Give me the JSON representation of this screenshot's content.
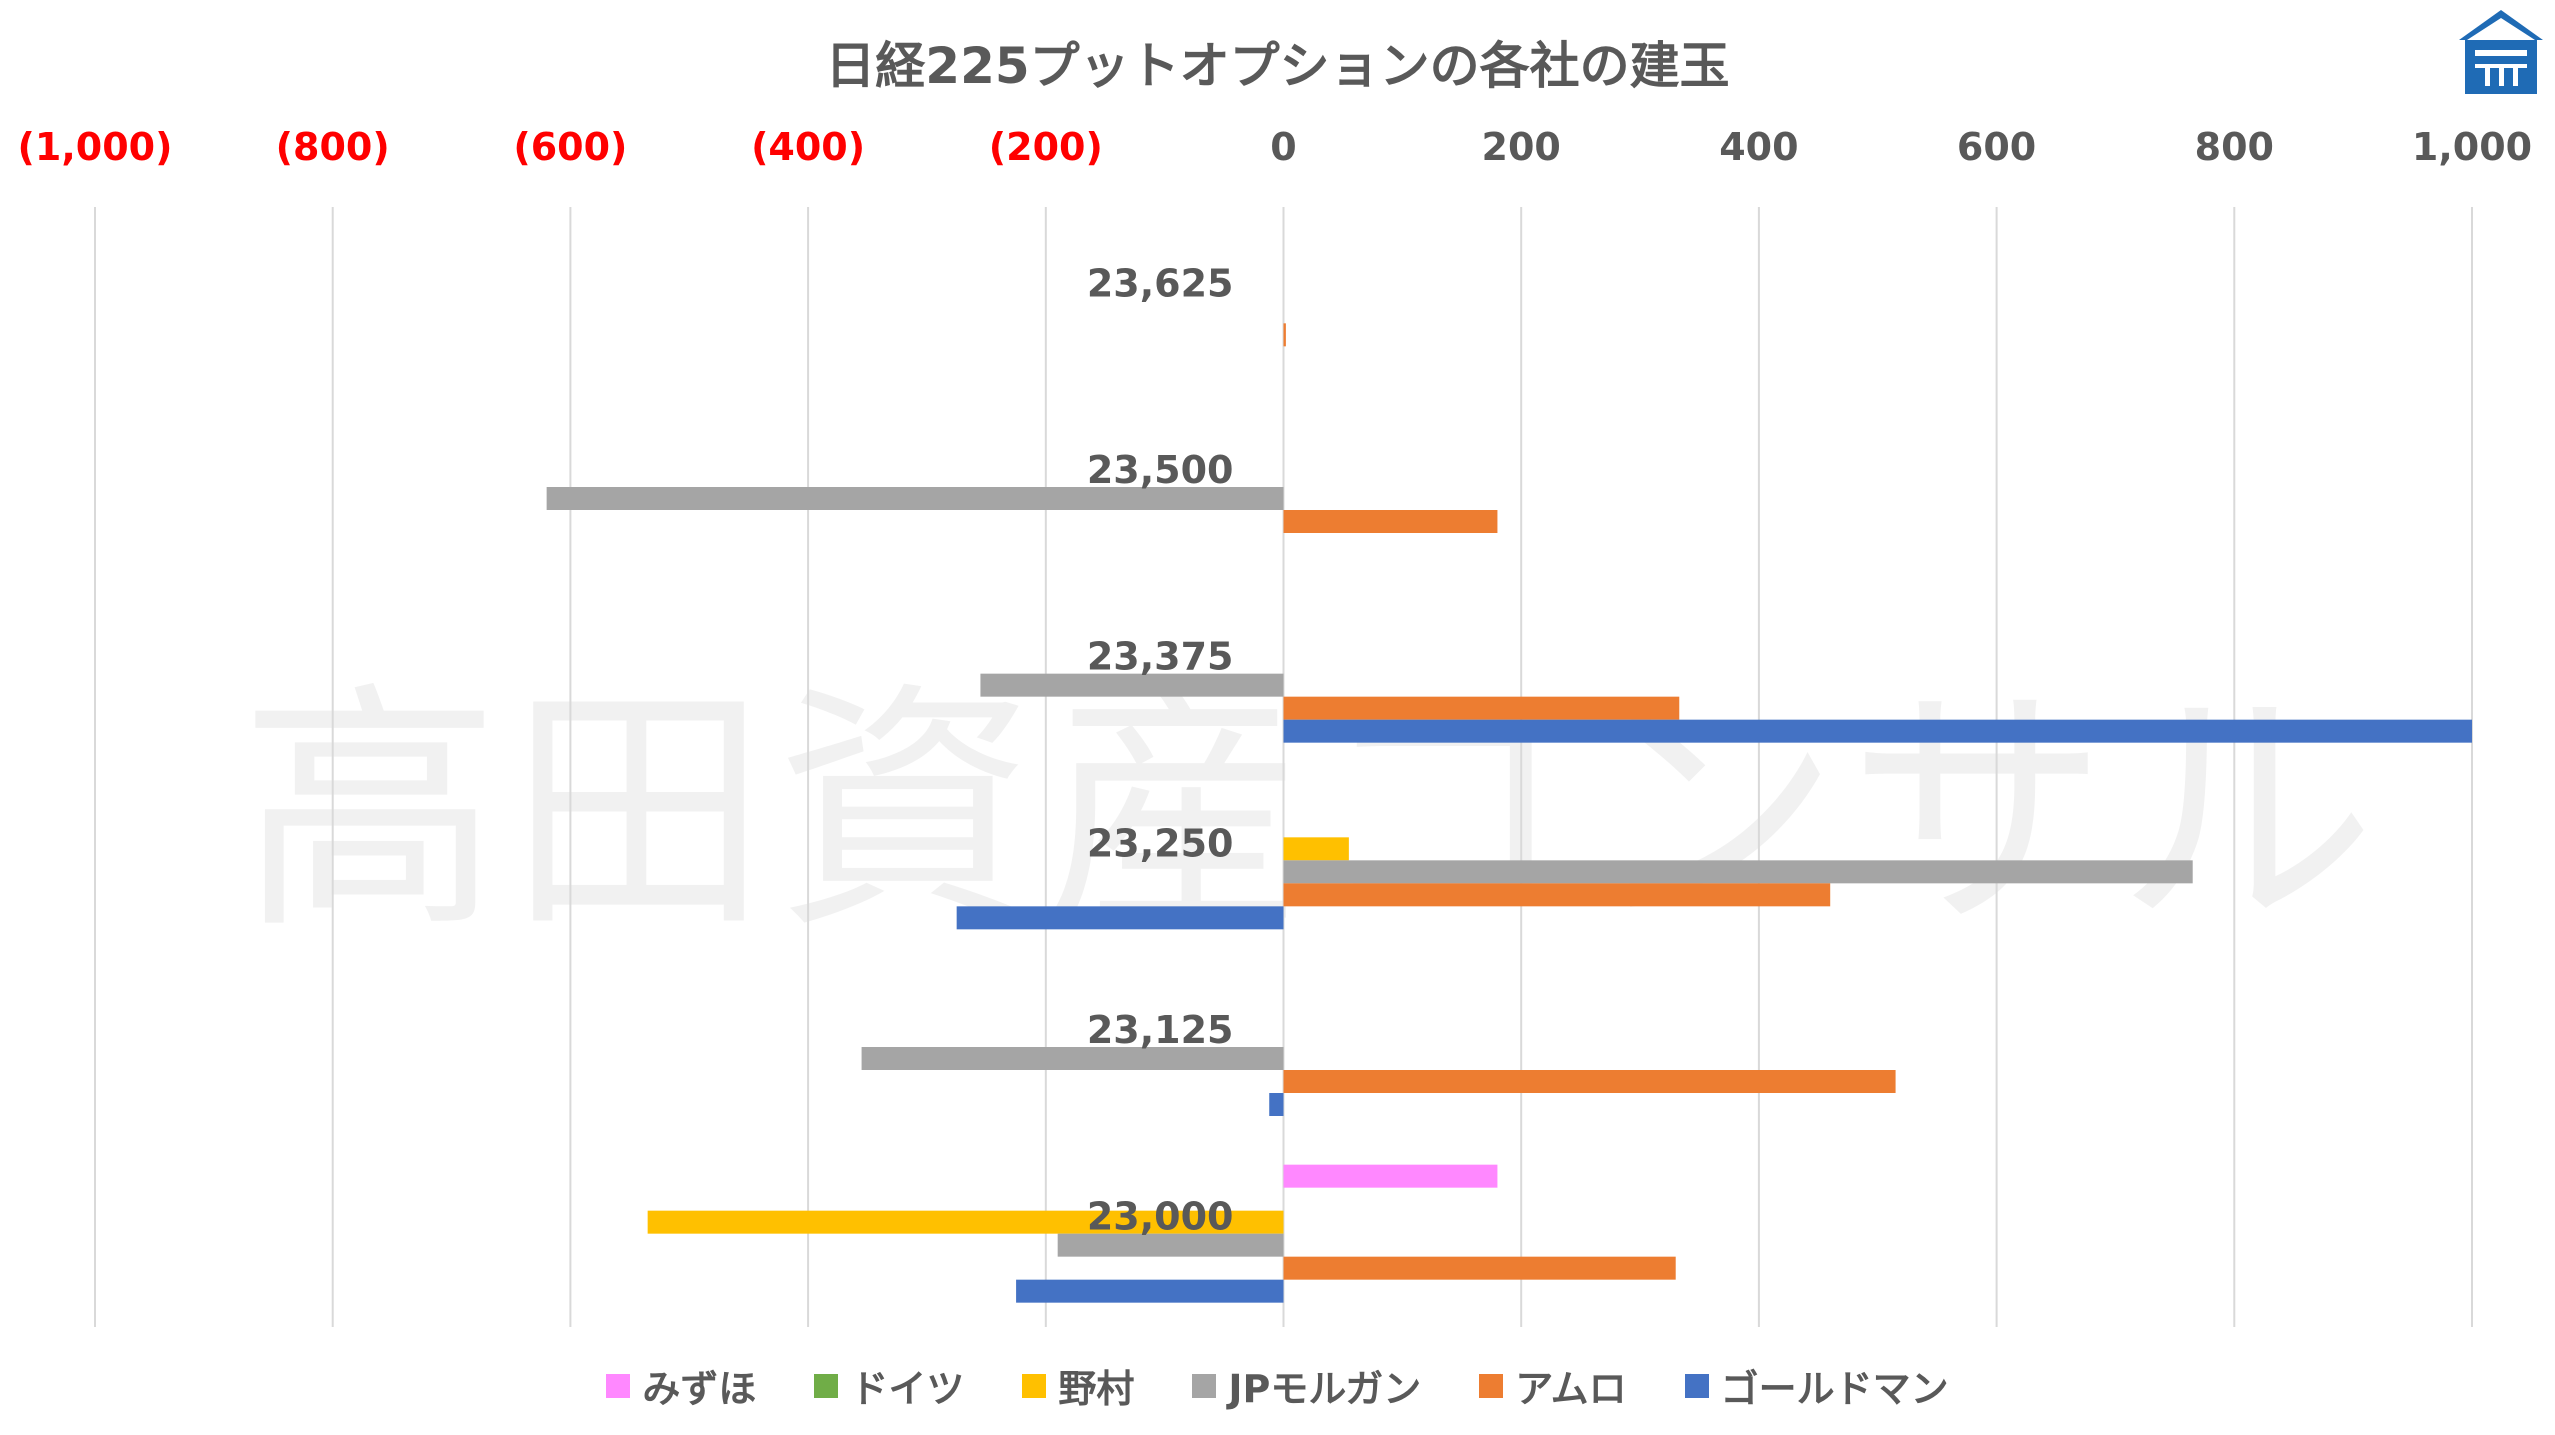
{
  "title": "日経225プットオプションの各社の建玉",
  "watermark": "高田資産コンサル",
  "logo": "takata-logo-icon",
  "chart_data": {
    "type": "bar",
    "orientation": "horizontal",
    "title": "日経225プットオプションの各社の建玉",
    "xlim": [
      -1000,
      1000
    ],
    "xticks": [
      -1000,
      -800,
      -600,
      -400,
      -200,
      0,
      200,
      400,
      600,
      800,
      1000
    ],
    "xtick_labels": [
      "(1,000)",
      "(800)",
      "(600)",
      "(400)",
      "(200)",
      "0",
      "200",
      "400",
      "600",
      "800",
      "1,000"
    ],
    "x_axis_position": "top",
    "negative_tick_color": "#ff0000",
    "grid": true,
    "legend_position": "bottom",
    "categories": [
      "23,625",
      "23,500",
      "23,375",
      "23,250",
      "23,125",
      "23,000"
    ],
    "series": [
      {
        "name": "みずほ",
        "color": "#ff88ff",
        "values": [
          0,
          0,
          0,
          0,
          0,
          180
        ]
      },
      {
        "name": "ドイツ",
        "color": "#70ad47",
        "values": [
          0,
          0,
          0,
          0,
          0,
          0
        ]
      },
      {
        "name": "野村",
        "color": "#ffc000",
        "values": [
          0,
          0,
          0,
          55,
          0,
          -535
        ]
      },
      {
        "name": "JPモルガン",
        "color": "#a5a5a5",
        "values": [
          0,
          -620,
          -255,
          765,
          -355,
          -190
        ]
      },
      {
        "name": "アムロ",
        "color": "#ed7d31",
        "values": [
          2,
          180,
          333,
          460,
          515,
          330
        ]
      },
      {
        "name": "ゴールドマン",
        "color": "#4472c4",
        "values": [
          0,
          0,
          1000,
          -275,
          -12,
          -225
        ]
      }
    ]
  }
}
